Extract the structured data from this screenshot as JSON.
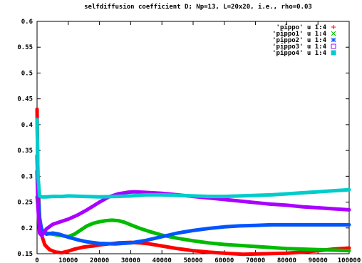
{
  "chart_data": {
    "type": "line",
    "title": "selfdiffusion coefficient D; Np=13, L=20x20, i.e., rho=0.03",
    "xlabel": "",
    "ylabel": "",
    "xlim": [
      0,
      100000
    ],
    "ylim": [
      0.15,
      0.6
    ],
    "x_ticks": [
      0,
      10000,
      20000,
      30000,
      40000,
      50000,
      60000,
      70000,
      80000,
      90000,
      100000
    ],
    "x_tick_labels": [
      "0",
      "10000",
      "20000",
      "30000",
      "40000",
      "50000",
      "60000",
      "70000",
      "80000",
      "90000",
      "100000"
    ],
    "y_ticks": [
      0.15,
      0.2,
      0.25,
      0.3,
      0.35,
      0.4,
      0.45,
      0.5,
      0.55,
      0.6
    ],
    "y_tick_labels": [
      "0.15",
      "0.2",
      "0.25",
      "0.3",
      "0.35",
      "0.4",
      "0.45",
      "0.5",
      "0.55",
      "0.6"
    ],
    "grid": false,
    "legend_position": "top-right",
    "series": [
      {
        "name": "'pippo' u 1:4",
        "color": "#ff0000",
        "marker": "plus",
        "x": [
          0,
          300,
          800,
          1500,
          2500,
          4000,
          6000,
          8000,
          10000,
          12000,
          15000,
          18000,
          20000,
          23000,
          26000,
          30000,
          33000,
          36000,
          40000,
          45000,
          50000,
          55000,
          60000,
          63000,
          66000,
          80000,
          85000,
          90000,
          95000,
          100000
        ],
        "values": [
          0.43,
          0.29,
          0.22,
          0.185,
          0.167,
          0.158,
          0.153,
          0.152,
          0.155,
          0.159,
          0.163,
          0.165,
          0.167,
          0.169,
          0.171,
          0.172,
          0.171,
          0.169,
          0.165,
          0.16,
          0.156,
          0.153,
          0.151,
          0.15,
          0.149,
          0.151,
          0.153,
          0.156,
          0.159,
          0.161
        ]
      },
      {
        "name": "'pippo1' u 1:4",
        "color": "#00bb00",
        "marker": "cross",
        "x": [
          0,
          300,
          800,
          1500,
          3000,
          5000,
          8000,
          10000,
          12000,
          14000,
          16000,
          18000,
          20000,
          22000,
          24000,
          26000,
          28000,
          30000,
          33000,
          36000,
          40000,
          45000,
          50000,
          55000,
          60000,
          65000,
          70000,
          75000,
          80000,
          85000,
          90000,
          95000,
          100000
        ],
        "values": [
          0.26,
          0.24,
          0.215,
          0.197,
          0.19,
          0.188,
          0.185,
          0.183,
          0.188,
          0.196,
          0.204,
          0.209,
          0.212,
          0.214,
          0.215,
          0.214,
          0.211,
          0.206,
          0.199,
          0.193,
          0.186,
          0.18,
          0.175,
          0.171,
          0.168,
          0.166,
          0.164,
          0.162,
          0.16,
          0.159,
          0.158,
          0.157,
          0.156
        ]
      },
      {
        "name": "'pippo2' u 1:4",
        "color": "#0055ff",
        "marker": "star",
        "x": [
          0,
          300,
          800,
          1500,
          3000,
          5000,
          7000,
          10000,
          13000,
          16000,
          20000,
          25000,
          30000,
          35000,
          40000,
          45000,
          50000,
          55000,
          60000,
          65000,
          70000,
          75000,
          80000,
          85000,
          90000,
          95000,
          100000
        ],
        "values": [
          0.34,
          0.27,
          0.22,
          0.195,
          0.188,
          0.19,
          0.188,
          0.182,
          0.177,
          0.173,
          0.17,
          0.169,
          0.171,
          0.176,
          0.183,
          0.19,
          0.195,
          0.199,
          0.202,
          0.204,
          0.205,
          0.206,
          0.206,
          0.206,
          0.206,
          0.206,
          0.206
        ]
      },
      {
        "name": "'pippo3' u 1:4",
        "color": "#aa00ff",
        "marker": "square",
        "x": [
          0,
          300,
          800,
          1500,
          3000,
          5000,
          8000,
          10000,
          13000,
          16000,
          20000,
          23000,
          26000,
          29000,
          31000,
          34000,
          37000,
          40000,
          45000,
          50000,
          55000,
          60000,
          65000,
          70000,
          75000,
          80000,
          85000,
          90000,
          95000,
          100000
        ],
        "values": [
          0.31,
          0.24,
          0.19,
          0.185,
          0.198,
          0.207,
          0.213,
          0.217,
          0.225,
          0.235,
          0.25,
          0.26,
          0.266,
          0.269,
          0.27,
          0.269,
          0.268,
          0.267,
          0.264,
          0.261,
          0.258,
          0.255,
          0.252,
          0.249,
          0.246,
          0.244,
          0.241,
          0.239,
          0.237,
          0.235
        ]
      },
      {
        "name": "'pippo4' u 1:4",
        "color": "#00cccc",
        "marker": "filled-square",
        "x": [
          0,
          300,
          800,
          1500,
          3000,
          5000,
          8000,
          10000,
          15000,
          20000,
          25000,
          30000,
          35000,
          40000,
          45000,
          50000,
          55000,
          60000,
          65000,
          70000,
          75000,
          80000,
          85000,
          90000,
          95000,
          100000
        ],
        "values": [
          0.41,
          0.3,
          0.262,
          0.26,
          0.26,
          0.261,
          0.261,
          0.262,
          0.261,
          0.26,
          0.261,
          0.262,
          0.264,
          0.264,
          0.263,
          0.262,
          0.261,
          0.261,
          0.262,
          0.263,
          0.264,
          0.266,
          0.268,
          0.27,
          0.272,
          0.274
        ]
      }
    ]
  }
}
